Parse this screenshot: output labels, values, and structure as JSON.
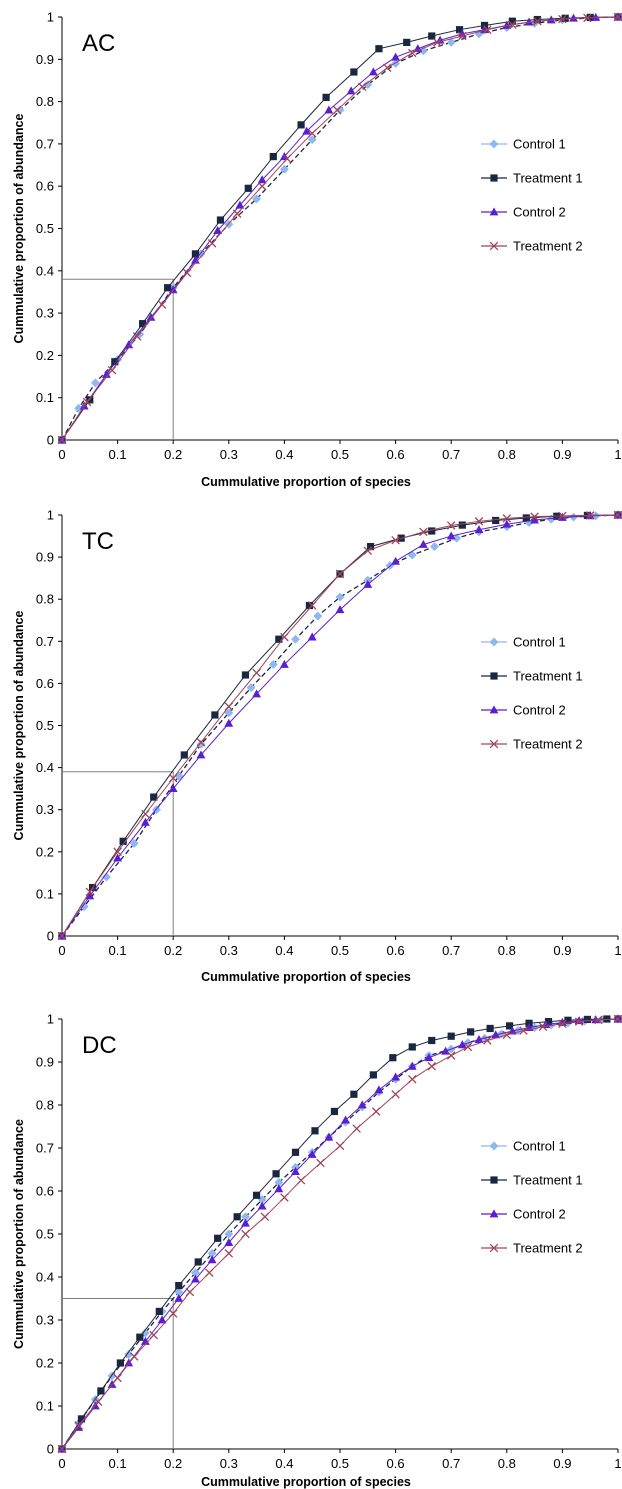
{
  "chart_data": [
    {
      "type": "line",
      "panel_label": "AC",
      "xlabel": "Cummulative proportion of species",
      "ylabel": "Cummulative proportion of abundance",
      "xlim": [
        0,
        1
      ],
      "ylim": [
        0,
        1
      ],
      "x_ticks": [
        "0",
        "0.1",
        "0.2",
        "0.3",
        "0.4",
        "0.5",
        "0.6",
        "0.7",
        "0.8",
        "0.9",
        "1"
      ],
      "y_ticks": [
        "0",
        "0.1",
        "0.2",
        "0.3",
        "0.4",
        "0.5",
        "0.6",
        "0.7",
        "0.8",
        "0.9",
        "1"
      ],
      "reference": {
        "x": 0.2,
        "y": 0.38
      },
      "legend_position": "right",
      "series": [
        {
          "name": "Control 1",
          "color": "#8fb8f0",
          "marker": "diamond",
          "x": [
            0,
            0.03,
            0.06,
            0.1,
            0.14,
            0.2,
            0.25,
            0.3,
            0.35,
            0.4,
            0.45,
            0.5,
            0.55,
            0.6,
            0.65,
            0.7,
            0.75,
            0.8,
            0.85,
            0.9,
            0.95,
            1
          ],
          "y": [
            0,
            0.075,
            0.135,
            0.19,
            0.25,
            0.36,
            0.44,
            0.51,
            0.57,
            0.64,
            0.71,
            0.78,
            0.84,
            0.89,
            0.92,
            0.94,
            0.96,
            0.975,
            0.985,
            0.993,
            0.998,
            1
          ]
        },
        {
          "name": "Treatment 1",
          "color": "#1a2740",
          "marker": "square",
          "x": [
            0,
            0.05,
            0.095,
            0.145,
            0.19,
            0.24,
            0.285,
            0.335,
            0.38,
            0.43,
            0.475,
            0.525,
            0.57,
            0.62,
            0.665,
            0.715,
            0.76,
            0.81,
            0.855,
            0.905,
            0.95,
            1
          ],
          "y": [
            0,
            0.095,
            0.185,
            0.275,
            0.36,
            0.44,
            0.52,
            0.595,
            0.67,
            0.745,
            0.81,
            0.87,
            0.925,
            0.94,
            0.955,
            0.97,
            0.98,
            0.99,
            0.994,
            0.997,
            0.999,
            1
          ]
        },
        {
          "name": "Control 2",
          "color": "#5a1fd0",
          "marker": "triangle",
          "x": [
            0,
            0.04,
            0.08,
            0.12,
            0.16,
            0.2,
            0.24,
            0.28,
            0.32,
            0.36,
            0.4,
            0.44,
            0.48,
            0.52,
            0.56,
            0.6,
            0.64,
            0.68,
            0.72,
            0.76,
            0.8,
            0.84,
            0.88,
            0.92,
            0.96,
            1
          ],
          "y": [
            0,
            0.08,
            0.155,
            0.225,
            0.29,
            0.355,
            0.425,
            0.495,
            0.555,
            0.615,
            0.67,
            0.73,
            0.78,
            0.825,
            0.87,
            0.905,
            0.925,
            0.945,
            0.96,
            0.97,
            0.98,
            0.988,
            0.993,
            0.997,
            0.999,
            1
          ]
        },
        {
          "name": "Treatment 2",
          "color": "#a0455a",
          "marker": "x",
          "x": [
            0,
            0.045,
            0.09,
            0.135,
            0.18,
            0.225,
            0.27,
            0.315,
            0.36,
            0.405,
            0.45,
            0.495,
            0.54,
            0.585,
            0.63,
            0.675,
            0.72,
            0.765,
            0.81,
            0.855,
            0.9,
            0.945,
            1
          ],
          "y": [
            0,
            0.09,
            0.165,
            0.245,
            0.32,
            0.395,
            0.465,
            0.535,
            0.6,
            0.665,
            0.725,
            0.78,
            0.835,
            0.88,
            0.915,
            0.94,
            0.955,
            0.97,
            0.982,
            0.99,
            0.995,
            0.998,
            1
          ]
        }
      ]
    },
    {
      "type": "line",
      "panel_label": "TC",
      "xlabel": "Cummulative proportion of species",
      "ylabel": "Cummulative proportion of abundance",
      "xlim": [
        0,
        1
      ],
      "ylim": [
        0,
        1
      ],
      "x_ticks": [
        "0",
        "0.1",
        "0.2",
        "0.3",
        "0.4",
        "0.5",
        "0.6",
        "0.7",
        "0.8",
        "0.9",
        "1"
      ],
      "y_ticks": [
        "0",
        "0.1",
        "0.2",
        "0.3",
        "0.4",
        "0.5",
        "0.6",
        "0.7",
        "0.8",
        "0.9",
        "1"
      ],
      "reference": {
        "x": 0.2,
        "y": 0.39
      },
      "legend_position": "right",
      "series": [
        {
          "name": "Control 1",
          "color": "#8fb8f0",
          "marker": "diamond",
          "x": [
            0,
            0.04,
            0.08,
            0.13,
            0.17,
            0.21,
            0.25,
            0.3,
            0.34,
            0.38,
            0.42,
            0.46,
            0.5,
            0.55,
            0.59,
            0.63,
            0.67,
            0.71,
            0.75,
            0.8,
            0.84,
            0.88,
            0.92,
            0.96,
            1
          ],
          "y": [
            0,
            0.07,
            0.14,
            0.22,
            0.3,
            0.38,
            0.455,
            0.53,
            0.59,
            0.645,
            0.705,
            0.76,
            0.805,
            0.845,
            0.88,
            0.905,
            0.925,
            0.945,
            0.96,
            0.972,
            0.982,
            0.99,
            0.995,
            0.998,
            1
          ]
        },
        {
          "name": "Treatment 1",
          "color": "#1a2740",
          "marker": "square",
          "x": [
            0,
            0.055,
            0.11,
            0.165,
            0.22,
            0.275,
            0.33,
            0.39,
            0.445,
            0.5,
            0.555,
            0.61,
            0.665,
            0.72,
            0.78,
            0.835,
            0.89,
            0.945,
            1
          ],
          "y": [
            0,
            0.115,
            0.225,
            0.33,
            0.43,
            0.525,
            0.62,
            0.705,
            0.785,
            0.86,
            0.925,
            0.945,
            0.962,
            0.976,
            0.987,
            0.993,
            0.997,
            0.999,
            1
          ]
        },
        {
          "name": "Control 2",
          "color": "#5a1fd0",
          "marker": "triangle",
          "x": [
            0,
            0.05,
            0.1,
            0.15,
            0.2,
            0.25,
            0.3,
            0.35,
            0.4,
            0.45,
            0.5,
            0.55,
            0.6,
            0.65,
            0.7,
            0.75,
            0.8,
            0.85,
            0.9,
            0.95,
            1
          ],
          "y": [
            0,
            0.095,
            0.185,
            0.27,
            0.35,
            0.43,
            0.505,
            0.575,
            0.645,
            0.71,
            0.775,
            0.835,
            0.89,
            0.93,
            0.95,
            0.965,
            0.978,
            0.988,
            0.994,
            0.998,
            1
          ]
        },
        {
          "name": "Treatment 2",
          "color": "#a0455a",
          "marker": "x",
          "x": [
            0,
            0.05,
            0.1,
            0.15,
            0.2,
            0.25,
            0.3,
            0.35,
            0.4,
            0.45,
            0.5,
            0.55,
            0.6,
            0.65,
            0.7,
            0.75,
            0.8,
            0.85,
            0.9,
            0.95,
            1
          ],
          "y": [
            0,
            0.105,
            0.2,
            0.29,
            0.375,
            0.46,
            0.545,
            0.625,
            0.71,
            0.785,
            0.86,
            0.915,
            0.94,
            0.96,
            0.975,
            0.985,
            0.992,
            0.996,
            0.998,
            0.999,
            1
          ]
        }
      ]
    },
    {
      "type": "line",
      "panel_label": "DC",
      "xlabel": "Cummulative proportion of species",
      "ylabel": "Cummulative proportion of abundance",
      "xlim": [
        0,
        1
      ],
      "ylim": [
        0,
        1
      ],
      "x_ticks": [
        "0",
        "0.1",
        "0.2",
        "0.3",
        "0.4",
        "0.5",
        "0.6",
        "0.7",
        "0.8",
        "0.9",
        "1"
      ],
      "y_ticks": [
        "0",
        "0.1",
        "0.2",
        "0.3",
        "0.4",
        "0.5",
        "0.6",
        "0.7",
        "0.8",
        "0.9",
        "1"
      ],
      "reference": {
        "x": 0.2,
        "y": 0.35
      },
      "legend_position": "right",
      "series": [
        {
          "name": "Control 1",
          "color": "#8fb8f0",
          "marker": "diamond",
          "x": [
            0,
            0.03,
            0.06,
            0.09,
            0.12,
            0.15,
            0.18,
            0.21,
            0.24,
            0.27,
            0.3,
            0.33,
            0.36,
            0.39,
            0.42,
            0.45,
            0.48,
            0.51,
            0.54,
            0.57,
            0.6,
            0.63,
            0.66,
            0.7,
            0.73,
            0.76,
            0.79,
            0.82,
            0.85,
            0.88,
            0.91,
            0.94,
            0.97,
            1
          ],
          "y": [
            0,
            0.06,
            0.115,
            0.17,
            0.22,
            0.27,
            0.32,
            0.365,
            0.41,
            0.455,
            0.5,
            0.54,
            0.58,
            0.62,
            0.655,
            0.69,
            0.725,
            0.76,
            0.795,
            0.83,
            0.86,
            0.89,
            0.915,
            0.93,
            0.945,
            0.955,
            0.965,
            0.973,
            0.98,
            0.986,
            0.991,
            0.995,
            0.998,
            1
          ]
        },
        {
          "name": "Treatment 1",
          "color": "#1a2740",
          "marker": "square",
          "x": [
            0,
            0.035,
            0.07,
            0.105,
            0.14,
            0.175,
            0.21,
            0.245,
            0.28,
            0.315,
            0.35,
            0.385,
            0.42,
            0.455,
            0.49,
            0.525,
            0.56,
            0.595,
            0.63,
            0.665,
            0.7,
            0.735,
            0.77,
            0.805,
            0.84,
            0.875,
            0.91,
            0.945,
            0.98,
            1
          ],
          "y": [
            0,
            0.07,
            0.135,
            0.2,
            0.26,
            0.32,
            0.38,
            0.435,
            0.49,
            0.54,
            0.59,
            0.64,
            0.69,
            0.74,
            0.785,
            0.825,
            0.87,
            0.91,
            0.935,
            0.95,
            0.96,
            0.97,
            0.978,
            0.984,
            0.99,
            0.994,
            0.997,
            0.999,
            1,
            1
          ]
        },
        {
          "name": "Control 2",
          "color": "#5a1fd0",
          "marker": "triangle",
          "x": [
            0,
            0.03,
            0.06,
            0.09,
            0.12,
            0.15,
            0.18,
            0.21,
            0.24,
            0.27,
            0.3,
            0.33,
            0.36,
            0.39,
            0.42,
            0.45,
            0.48,
            0.51,
            0.54,
            0.57,
            0.6,
            0.63,
            0.66,
            0.69,
            0.72,
            0.75,
            0.78,
            0.81,
            0.84,
            0.87,
            0.9,
            0.93,
            0.96,
            1
          ],
          "y": [
            0,
            0.05,
            0.1,
            0.15,
            0.2,
            0.25,
            0.3,
            0.35,
            0.395,
            0.44,
            0.48,
            0.525,
            0.565,
            0.605,
            0.645,
            0.685,
            0.725,
            0.765,
            0.8,
            0.835,
            0.865,
            0.89,
            0.91,
            0.925,
            0.94,
            0.952,
            0.963,
            0.972,
            0.98,
            0.987,
            0.992,
            0.996,
            0.998,
            1
          ]
        },
        {
          "name": "Treatment 2",
          "color": "#a0455a",
          "marker": "x",
          "x": [
            0,
            0.03,
            0.065,
            0.1,
            0.13,
            0.165,
            0.2,
            0.23,
            0.265,
            0.3,
            0.33,
            0.365,
            0.4,
            0.43,
            0.465,
            0.5,
            0.53,
            0.565,
            0.6,
            0.63,
            0.665,
            0.7,
            0.73,
            0.765,
            0.8,
            0.83,
            0.865,
            0.9,
            0.93,
            0.965,
            1
          ],
          "y": [
            0,
            0.055,
            0.11,
            0.165,
            0.215,
            0.265,
            0.315,
            0.365,
            0.41,
            0.455,
            0.5,
            0.54,
            0.585,
            0.625,
            0.665,
            0.705,
            0.745,
            0.785,
            0.825,
            0.86,
            0.89,
            0.915,
            0.935,
            0.95,
            0.963,
            0.973,
            0.982,
            0.989,
            0.994,
            0.998,
            1
          ]
        }
      ]
    }
  ]
}
